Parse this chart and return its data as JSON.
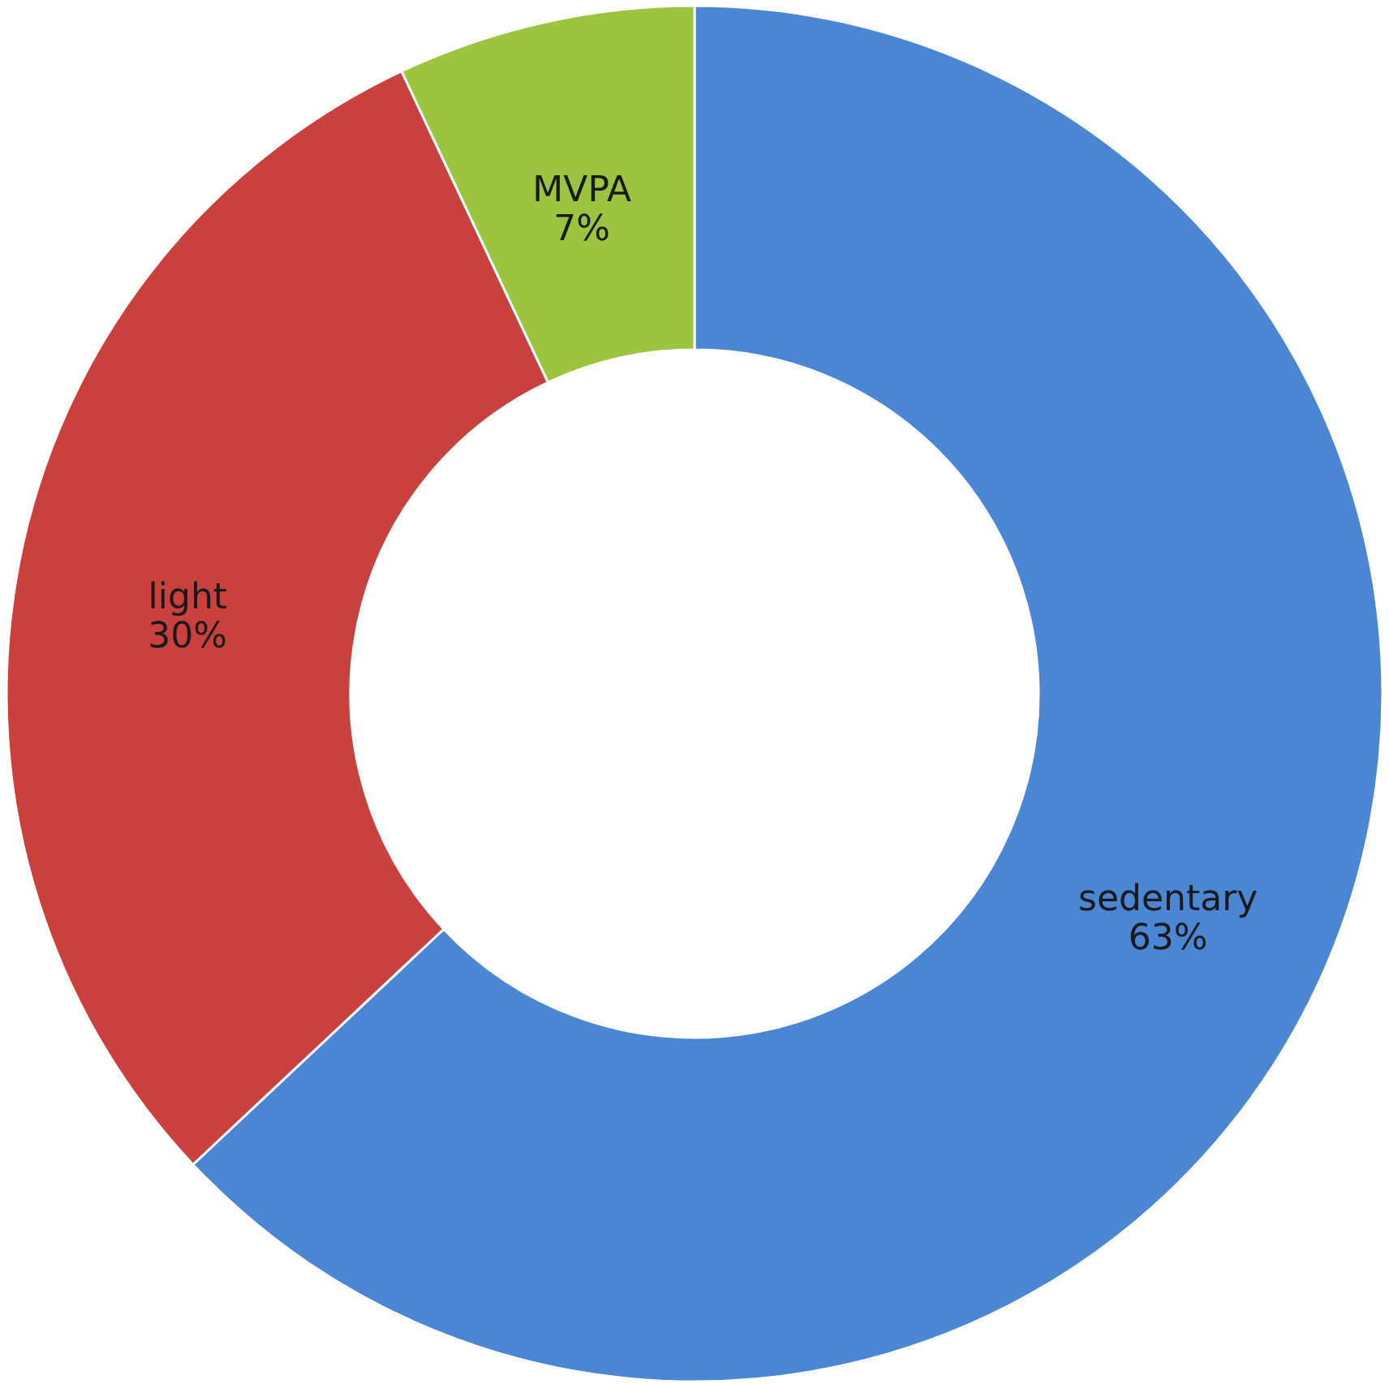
{
  "chart_data": {
    "type": "donut",
    "categories": [
      "sedentary",
      "light",
      "MVPA"
    ],
    "values": [
      63,
      30,
      7
    ],
    "colors": [
      "#4a86d4",
      "#c9403d",
      "#9bc53f"
    ],
    "value_labels": [
      "63%",
      "30%",
      "7%"
    ],
    "legend": false
  }
}
